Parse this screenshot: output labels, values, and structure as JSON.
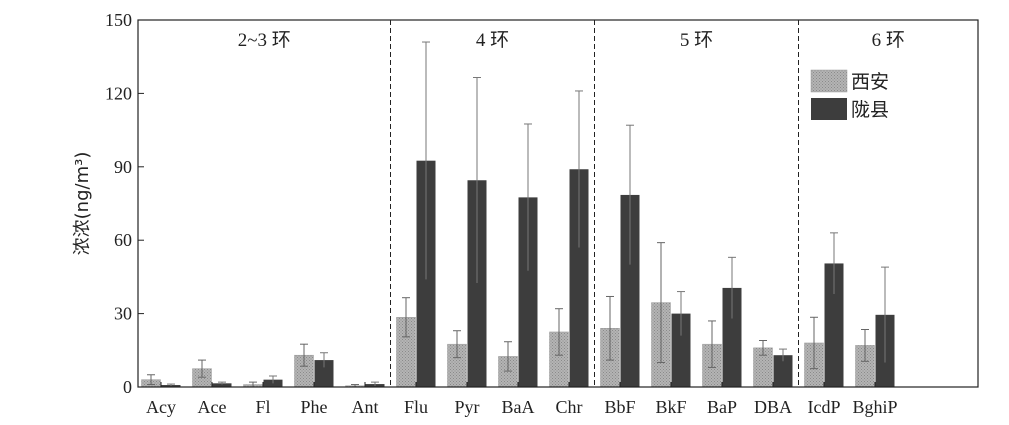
{
  "chart_data": {
    "type": "bar",
    "categories": [
      "Acy",
      "Ace",
      "Fl",
      "Phe",
      "Ant",
      "Flu",
      "Pyr",
      "BaA",
      "Chr",
      "BbF",
      "BkF",
      "BaP",
      "DBA",
      "IcdP",
      "BghiP"
    ],
    "series": [
      {
        "name": "西安",
        "values": [
          3,
          7.5,
          1,
          13,
          0.5,
          28.5,
          17.5,
          12.5,
          22.5,
          24,
          34.5,
          17.5,
          16,
          18,
          17
        ],
        "errors": [
          2,
          3.5,
          1,
          4.5,
          0.5,
          8,
          5.5,
          6,
          9.5,
          13,
          24.5,
          9.5,
          3,
          10.5,
          6.5
        ],
        "color": "#a9a9a9"
      },
      {
        "name": "陇县",
        "values": [
          0.8,
          1.5,
          3,
          11,
          1.2,
          92.5,
          84.5,
          77.5,
          89,
          78.5,
          30,
          40.5,
          13,
          50.5,
          29.5
        ],
        "errors": [
          0.4,
          0.5,
          1.5,
          3,
          0.8,
          48.5,
          42,
          30,
          32,
          28.5,
          9,
          12.5,
          2.5,
          12.5,
          19.5
        ],
        "color": "#3d3d3d"
      }
    ],
    "ylabel": "浓浓(ng/m³)",
    "ylim": [
      0,
      150
    ],
    "yticks": [
      0,
      30,
      60,
      90,
      120,
      150
    ],
    "groups": [
      {
        "label": "2~3 环",
        "start": 0,
        "end": 4
      },
      {
        "label": "4 环",
        "start": 5,
        "end": 8
      },
      {
        "label": "5 环",
        "start": 9,
        "end": 12
      },
      {
        "label": "6 环",
        "start": 13,
        "end": 14
      }
    ],
    "legend_position": "top-right",
    "grid": false
  }
}
